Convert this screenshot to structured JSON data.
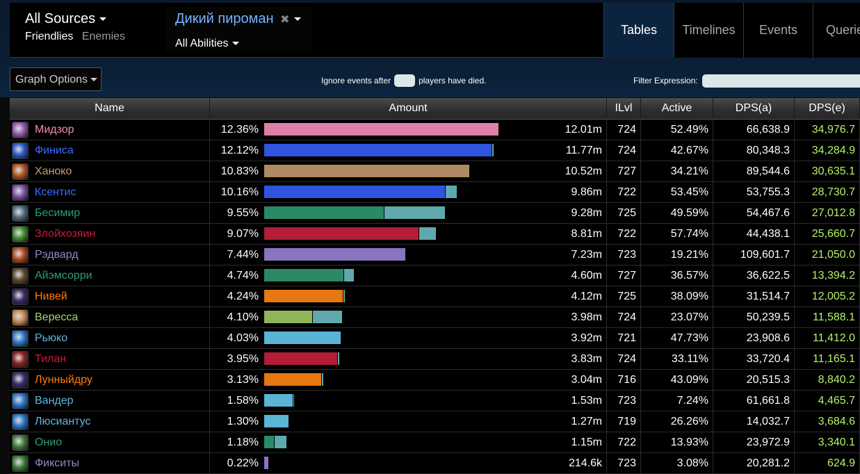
{
  "header": {
    "sources_label": "All Sources",
    "friendlies": "Friendlies",
    "enemies": "Enemies",
    "ability_title": "Дикий пироман",
    "ability_clear": "✖",
    "abilities_label": "All Abilities",
    "tabs": [
      "Tables",
      "Timelines",
      "Events",
      "Querie"
    ],
    "active_tab": "Tables"
  },
  "controls": {
    "graph_options": "Graph Options",
    "ignore_before": "Ignore events after",
    "ignore_after": "players have died.",
    "filter_label": "Filter Expression:"
  },
  "table": {
    "columns": [
      "Name",
      "Amount",
      "ILvl",
      "Active",
      "DPS(a)",
      "DPS(e)"
    ],
    "max_amount_fraction": 0.1236,
    "rows": [
      {
        "name": "Мидзор",
        "name_color": "#f48cba",
        "icon_color": "#8e5aa8",
        "pct": "12.36%",
        "pct_value": 12.36,
        "bar_color": "#df7fa9",
        "secondary_fraction": 0.0,
        "amount": "12.01m",
        "ilvl": "724",
        "active": "52.49%",
        "dps_a": "66,638.9",
        "dps_e": "34,976.7"
      },
      {
        "name": "Финиса",
        "name_color": "#3d6bff",
        "icon_color": "#2a56c9",
        "pct": "12.12%",
        "pct_value": 12.12,
        "bar_color": "#2f55e0",
        "secondary_fraction": 0.01,
        "amount": "11.77m",
        "ilvl": "724",
        "active": "42.67%",
        "dps_a": "80,348.3",
        "dps_e": "34,284.9"
      },
      {
        "name": "Ханоко",
        "name_color": "#c69b6d",
        "icon_color": "#b0541f",
        "pct": "10.83%",
        "pct_value": 10.83,
        "bar_color": "#ad8a64",
        "secondary_fraction": 0.0,
        "amount": "10.52m",
        "ilvl": "727",
        "active": "34.21%",
        "dps_a": "89,544.6",
        "dps_e": "30,635.1"
      },
      {
        "name": "Ксентис",
        "name_color": "#3d6bff",
        "icon_color": "#7d4ea6",
        "pct": "10.16%",
        "pct_value": 10.16,
        "bar_color": "#2f55e0",
        "secondary_fraction": 0.06,
        "amount": "9.86m",
        "ilvl": "722",
        "active": "53.45%",
        "dps_a": "53,755.3",
        "dps_e": "28,730.7"
      },
      {
        "name": "Бесимир",
        "name_color": "#2e9e6e",
        "icon_color": "#4f6a7c",
        "pct": "9.55%",
        "pct_value": 9.55,
        "bar_color": "#2a8a66",
        "secondary_fraction": 0.34,
        "amount": "9.28m",
        "ilvl": "725",
        "active": "49.59%",
        "dps_a": "54,467.6",
        "dps_e": "27,012.8"
      },
      {
        "name": "Злойхозяин",
        "name_color": "#c41e3a",
        "icon_color": "#3f8a2d",
        "pct": "9.07%",
        "pct_value": 9.07,
        "bar_color": "#b21d38",
        "secondary_fraction": 0.1,
        "amount": "8.81m",
        "ilvl": "722",
        "active": "57.74%",
        "dps_a": "44,438.1",
        "dps_e": "25,660.7"
      },
      {
        "name": "Рэдвард",
        "name_color": "#9982c9",
        "icon_color": "#b04a1f",
        "pct": "7.44%",
        "pct_value": 7.44,
        "bar_color": "#8a74c0",
        "secondary_fraction": 0.0,
        "amount": "7.23m",
        "ilvl": "723",
        "active": "19.21%",
        "dps_a": "109,601.7",
        "dps_e": "21,050.0"
      },
      {
        "name": "Айэмсорри",
        "name_color": "#2e9e6e",
        "icon_color": "#5a4a2a",
        "pct": "4.74%",
        "pct_value": 4.74,
        "bar_color": "#2a8a66",
        "secondary_fraction": 0.12,
        "amount": "4.60m",
        "ilvl": "727",
        "active": "36.57%",
        "dps_a": "36,622.5",
        "dps_e": "13,394.2"
      },
      {
        "name": "Нивей",
        "name_color": "#ff7c0a",
        "icon_color": "#3a2a6a",
        "pct": "4.24%",
        "pct_value": 4.24,
        "bar_color": "#e67812",
        "secondary_fraction": 0.03,
        "amount": "4.12m",
        "ilvl": "725",
        "active": "38.09%",
        "dps_a": "31,514.7",
        "dps_e": "12,005.2"
      },
      {
        "name": "Вересса",
        "name_color": "#aad372",
        "icon_color": "#c28a55",
        "pct": "4.10%",
        "pct_value": 4.1,
        "bar_color": "#8fb55a",
        "secondary_fraction": 0.38,
        "amount": "3.98m",
        "ilvl": "724",
        "active": "23.07%",
        "dps_a": "50,239.5",
        "dps_e": "11,588.1"
      },
      {
        "name": "Рьюко",
        "name_color": "#5fb8dc",
        "icon_color": "#2a76c9",
        "pct": "4.03%",
        "pct_value": 4.03,
        "bar_color": "#5ab4d6",
        "secondary_fraction": 0.0,
        "amount": "3.92m",
        "ilvl": "721",
        "active": "47.73%",
        "dps_a": "23,908.6",
        "dps_e": "11,412.0"
      },
      {
        "name": "Тилан",
        "name_color": "#c41e3a",
        "icon_color": "#8a2222",
        "pct": "3.95%",
        "pct_value": 3.95,
        "bar_color": "#b21d38",
        "secondary_fraction": 0.03,
        "amount": "3.83m",
        "ilvl": "724",
        "active": "33.11%",
        "dps_a": "33,720.4",
        "dps_e": "11,165.1"
      },
      {
        "name": "Лунныйдру",
        "name_color": "#ff7c0a",
        "icon_color": "#3a2a6a",
        "pct": "3.13%",
        "pct_value": 3.13,
        "bar_color": "#e67812",
        "secondary_fraction": 0.04,
        "amount": "3.04m",
        "ilvl": "716",
        "active": "43.09%",
        "dps_a": "20,515.3",
        "dps_e": "8,840.2"
      },
      {
        "name": "Вандер",
        "name_color": "#5fb8dc",
        "icon_color": "#2a76c9",
        "pct": "1.58%",
        "pct_value": 1.58,
        "bar_color": "#5ab4d6",
        "secondary_fraction": 0.05,
        "amount": "1.53m",
        "ilvl": "723",
        "active": "7.24%",
        "dps_a": "61,661.8",
        "dps_e": "4,465.7"
      },
      {
        "name": "Люсиантус",
        "name_color": "#5fb8dc",
        "icon_color": "#2a76c9",
        "pct": "1.30%",
        "pct_value": 1.3,
        "bar_color": "#5ab4d6",
        "secondary_fraction": 0.0,
        "amount": "1.27m",
        "ilvl": "719",
        "active": "26.26%",
        "dps_a": "14,032.7",
        "dps_e": "3,684.6"
      },
      {
        "name": "Онио",
        "name_color": "#2e9e6e",
        "icon_color": "#3f7a3a",
        "pct": "1.18%",
        "pct_value": 1.18,
        "bar_color": "#2a8a66",
        "secondary_fraction": 0.55,
        "amount": "1.15m",
        "ilvl": "722",
        "active": "13.93%",
        "dps_a": "23,972.9",
        "dps_e": "3,340.1"
      },
      {
        "name": "Фикситы",
        "name_color": "#9982c9",
        "icon_color": "#3f7a3a",
        "pct": "0.22%",
        "pct_value": 0.22,
        "bar_color": "#8a74c0",
        "secondary_fraction": 0.0,
        "amount": "214.6k",
        "ilvl": "723",
        "active": "3.08%",
        "dps_a": "20,281.2",
        "dps_e": "624.9"
      }
    ]
  },
  "colors": {
    "secondary_bar": "#5fa9ad",
    "dps_e": "#b6f36a",
    "ability_link": "#74b4ff"
  }
}
